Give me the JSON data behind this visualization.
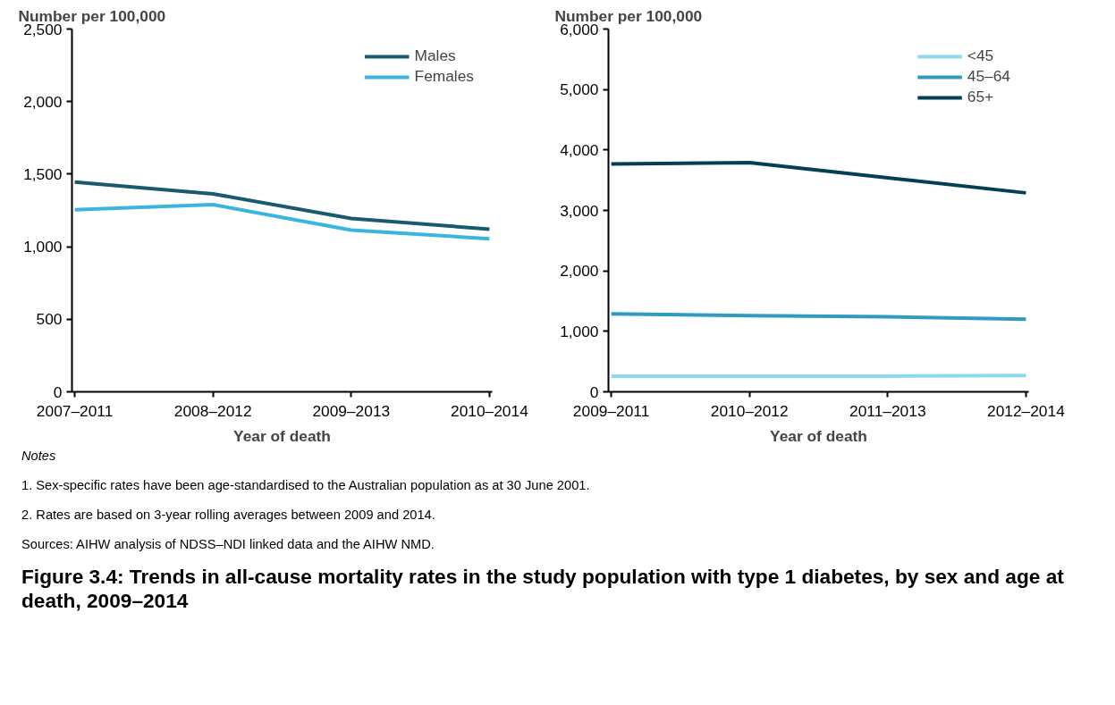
{
  "chart_data": [
    {
      "type": "line",
      "ylabel": "Number per 100,000",
      "xlabel": "Year of death",
      "categories": [
        "2007–2011",
        "2008–2012",
        "2009–2013",
        "2010–2014"
      ],
      "ylim": [
        0,
        2500
      ],
      "yticks": [
        0,
        {
          "value": 500,
          "label": "500"
        },
        {
          "value": 1000,
          "label": "1,000"
        },
        {
          "value": 1500,
          "label": "1,500"
        },
        {
          "value": 2000,
          "label": "2,000"
        },
        {
          "value": 2500,
          "label": "2,500"
        }
      ],
      "grid": false,
      "legend": "top right",
      "marker": "none",
      "line_style": "solid",
      "series": [
        {
          "name": "Males",
          "color": "#1a5a6e",
          "values": [
            1445,
            1364,
            1195,
            1121
          ]
        },
        {
          "name": "Females",
          "color": "#3bb5e0",
          "values": [
            1254,
            1290,
            1114,
            1055
          ]
        }
      ]
    },
    {
      "type": "line",
      "ylabel": "Number per 100,000",
      "xlabel": "Year of death",
      "categories": [
        "2009–2011",
        "2010–2012",
        "2011–2013",
        "2012–2014"
      ],
      "ylim": [
        0,
        6000
      ],
      "yticks": [
        0,
        {
          "value": 1000,
          "label": "1,000"
        },
        {
          "value": 2000,
          "label": "2,000"
        },
        {
          "value": 3000,
          "label": "3,000"
        },
        {
          "value": 4000,
          "label": "4,000"
        },
        {
          "value": 5000,
          "label": "5,000"
        },
        {
          "value": 6000,
          "label": "6,000"
        }
      ],
      "grid": false,
      "legend": "top right",
      "marker": "none",
      "line_style": "solid",
      "series": [
        {
          "name": "<45",
          "color": "#8ed8f0",
          "values": [
            260,
            260,
            260,
            270
          ]
        },
        {
          "name": "45–64",
          "color": "#2f9bbf",
          "values": [
            1290,
            1260,
            1240,
            1200
          ]
        },
        {
          "name": "65+",
          "color": "#053f55",
          "values": [
            3770,
            3790,
            3540,
            3290
          ]
        }
      ]
    },
    {
      "type": "other",
      "title": "Figure 3.4: Trends in all-cause mortality rates in the study population with type 1 diabetes, by sex and age at death, 2009–2014",
      "annotations": [
        "Notes",
        "1.    Sex-specific rates have been age-standardised to the Australian population as at 30 June 2001.",
        "2.    Rates are based on 3-year rolling averages between 2009 and 2014.",
        "Sources: AIHW analysis of NDSS–NDI linked data and the AIHW NMD."
      ]
    }
  ]
}
